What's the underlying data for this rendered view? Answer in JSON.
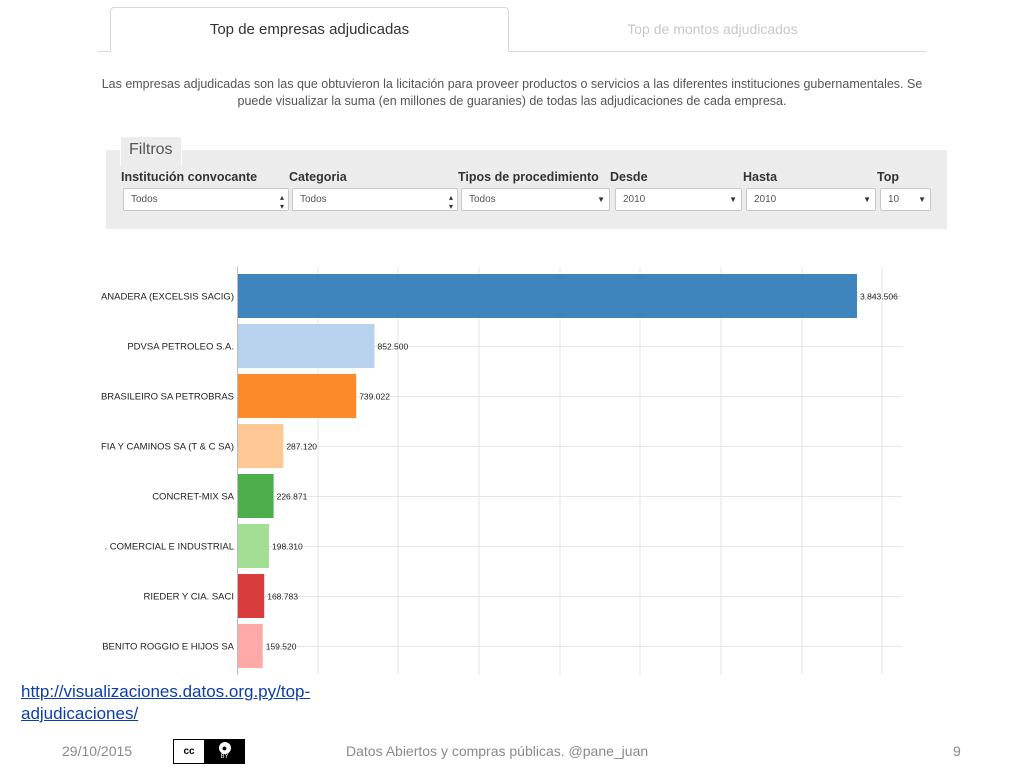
{
  "tabs": [
    {
      "label": "Top de empresas adjudicadas"
    },
    {
      "label": "Top de montos adjudicados"
    }
  ],
  "description": "Las empresas adjudicadas son las que obtuvieron la licitación para proveer productos o servicios a las diferentes instituciones gubernamentales. Se puede visualizar la suma (en millones de guaranies) de todas las adjudicaciones de cada empresa.",
  "filters": {
    "legend": "Filtros",
    "fields": [
      {
        "label": "Institución convocante",
        "value": "Todos",
        "arrow": "updown"
      },
      {
        "label": "Categoria",
        "value": "Todos",
        "arrow": "updown"
      },
      {
        "label": "Tipos de procedimiento",
        "value": "Todos",
        "arrow": "down"
      },
      {
        "label": "Desde",
        "value": "2010",
        "arrow": "down"
      },
      {
        "label": "Hasta",
        "value": "2010",
        "arrow": "down"
      },
      {
        "label": "Top",
        "value": "10",
        "arrow": "down"
      }
    ]
  },
  "chart_data": {
    "type": "bar",
    "orientation": "horizontal",
    "grid": true,
    "xlim": [
      0,
      4300000
    ],
    "categories": [
      "ANADERA (EXCELSIS SACIG)",
      "PDVSA PETROLEO S.A.",
      "BRASILEIRO SA PETROBRAS",
      "FIA Y CAMINOS SA (T & C SA)",
      "CONCRET-MIX SA",
      ". COMERCIAL E INDUSTRIAL",
      "RIEDER Y CIA. SACI",
      "BENITO ROGGIO E HIJOS SA"
    ],
    "values": [
      3843506,
      852500,
      739022,
      287120,
      226871,
      198310,
      168783,
      159520
    ],
    "value_labels": [
      "3.843.506",
      "852.500",
      "739.022",
      "287.120",
      "226.871",
      "198.310",
      "168.783",
      "159.520"
    ],
    "colors": [
      "#3d85bc",
      "#b8d1ec",
      "#fd8a2a",
      "#fec895",
      "#4eae4b",
      "#a2de94",
      "#d83c3c",
      "#ffa9a9"
    ]
  },
  "link": {
    "line1": "http://visualizaciones.datos.org.py/top-",
    "line2": "adjudicaciones/"
  },
  "footer": {
    "date": "29/10/2015",
    "license": "cc",
    "license_by": "BY",
    "title": "Datos Abiertos y compras públicas. @pane_juan",
    "page": "9"
  }
}
